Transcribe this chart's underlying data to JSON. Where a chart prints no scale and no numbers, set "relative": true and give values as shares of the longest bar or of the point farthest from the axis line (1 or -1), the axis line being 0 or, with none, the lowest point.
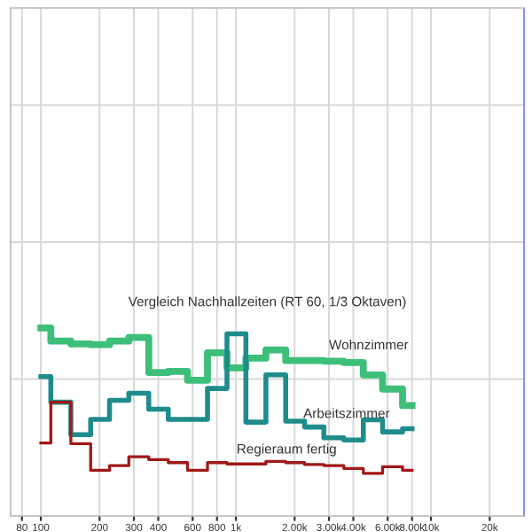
{
  "chart_data": {
    "type": "step",
    "title": "Vergleich Nachhallzeiten (RT 60, 1/3 Oktaven)",
    "relative": true,
    "log": "x",
    "grid": true,
    "legend": false,
    "tick_labels": "x",
    "x": [
      100,
      125,
      160,
      200,
      250,
      315,
      400,
      500,
      630,
      800,
      1000,
      1250,
      1600,
      2000,
      2500,
      3150,
      4000,
      5000,
      6300,
      8000
    ],
    "xlim": [
      70,
      30000
    ],
    "xticks": [
      80,
      100,
      200,
      300,
      400,
      600,
      800,
      {
        "value": 1000,
        "label": "1k"
      },
      {
        "value": 2000,
        "label": "2.00k"
      },
      {
        "value": 3000,
        "label": "3.00k"
      },
      {
        "value": 4000,
        "label": "4.00k"
      },
      {
        "value": 6000,
        "label": "6.00k"
      },
      {
        "value": 8000,
        "label": "8.00k"
      },
      {
        "value": 10000,
        "label": "10k"
      },
      {
        "value": 20000,
        "label": "20k"
      }
    ],
    "series": [
      {
        "name": "Wohnzimmer",
        "color": "#3dbf7a",
        "values": [
          1.0,
          0.93,
          0.915,
          0.911,
          0.93,
          0.949,
          0.763,
          0.769,
          0.722,
          0.868,
          0.788,
          0.839,
          0.883,
          0.826,
          0.826,
          0.823,
          0.816,
          0.75,
          0.675,
          0.587
        ]
      },
      {
        "name": "Arbeitszimmer",
        "color": "#1f8c8c",
        "values": [
          0.741,
          0.605,
          0.432,
          0.514,
          0.615,
          0.653,
          0.568,
          0.514,
          0.514,
          0.678,
          0.968,
          0.499,
          0.75,
          0.504,
          0.473,
          0.416,
          0.404,
          0.511,
          0.447,
          0.464
        ]
      },
      {
        "name": "Regieraum fertig",
        "color": "#a01818",
        "values": [
          0.388,
          0.605,
          0.385,
          0.243,
          0.268,
          0.315,
          0.3,
          0.284,
          0.243,
          0.284,
          0.277,
          0.277,
          0.29,
          0.284,
          0.274,
          0.268,
          0.253,
          0.227,
          0.262,
          0.243
        ]
      }
    ]
  }
}
